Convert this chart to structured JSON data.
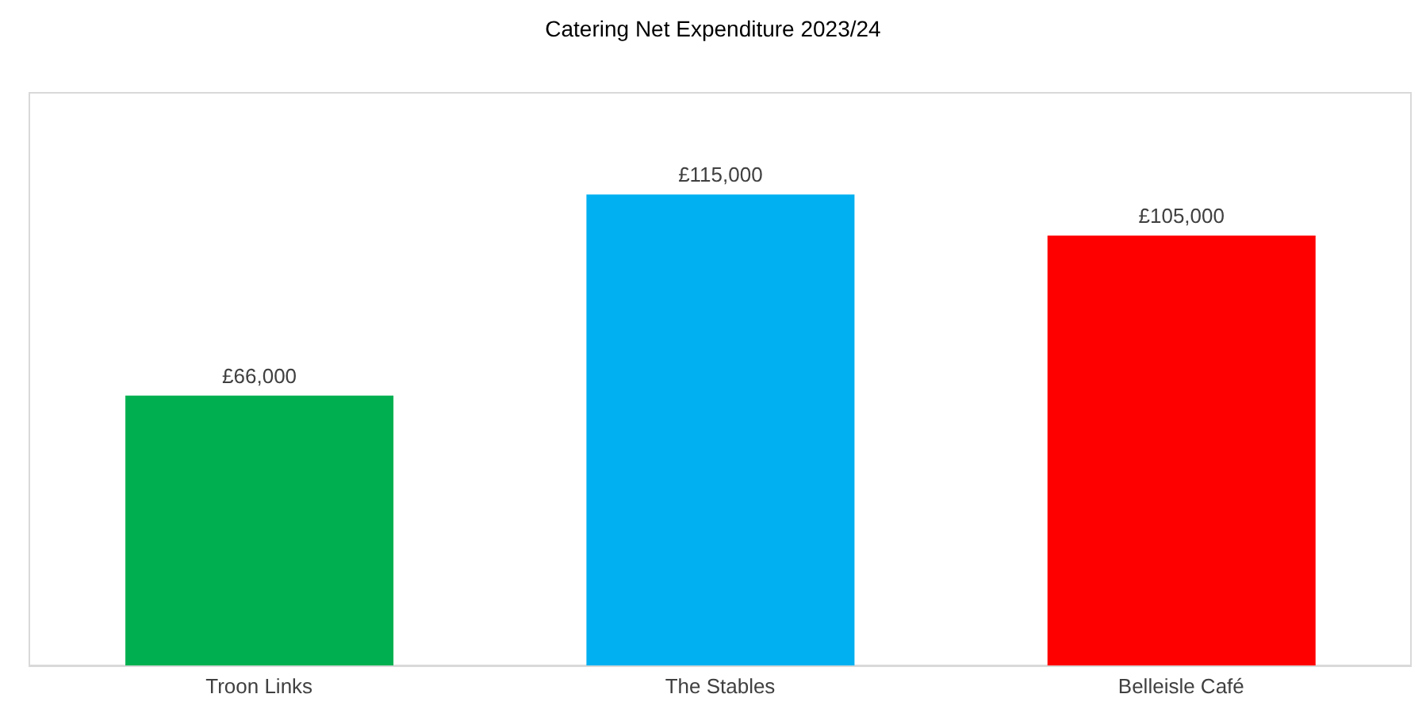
{
  "chart_data": {
    "type": "bar",
    "title": "Catering Net Expenditure 2023/24",
    "categories": [
      "Troon Links",
      "The Stables",
      "Belleisle Café"
    ],
    "values": [
      66000,
      115000,
      105000
    ],
    "colors": [
      "#00b050",
      "#00b0f0",
      "#ff0000"
    ],
    "value_labels": [
      "£66,000",
      "£115,000",
      "£105,000"
    ],
    "ylim": [
      0,
      140000
    ],
    "tick_labels": "x"
  }
}
